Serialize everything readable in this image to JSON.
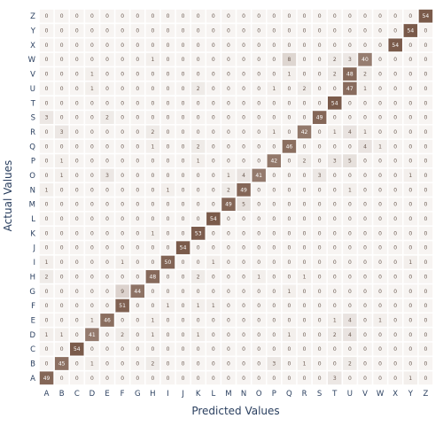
{
  "chart_data": {
    "type": "heatmap",
    "xlabel": "Predicted Values",
    "ylabel": "Actual Values",
    "x_categories": [
      "A",
      "B",
      "C",
      "D",
      "E",
      "F",
      "G",
      "H",
      "I",
      "J",
      "K",
      "L",
      "M",
      "N",
      "O",
      "P",
      "Q",
      "R",
      "S",
      "T",
      "U",
      "V",
      "W",
      "X",
      "Y",
      "Z"
    ],
    "y_categories": [
      "A",
      "B",
      "C",
      "D",
      "E",
      "F",
      "G",
      "H",
      "I",
      "J",
      "K",
      "L",
      "M",
      "N",
      "O",
      "P",
      "Q",
      "R",
      "S",
      "T",
      "U",
      "V",
      "W",
      "X",
      "Y",
      "Z"
    ],
    "value_range": [
      0,
      54
    ],
    "colorscale": [
      "#f7f4f2",
      "#7a5a4a"
    ],
    "grid": false,
    "legend": "none",
    "z": [
      [
        49,
        0,
        0,
        0,
        0,
        0,
        0,
        0,
        0,
        0,
        0,
        0,
        0,
        0,
        0,
        0,
        0,
        0,
        0,
        3,
        0,
        0,
        0,
        0,
        1,
        0
      ],
      [
        0,
        45,
        0,
        1,
        0,
        0,
        0,
        2,
        0,
        0,
        0,
        0,
        0,
        0,
        0,
        3,
        0,
        1,
        0,
        0,
        2,
        0,
        0,
        0,
        0,
        0
      ],
      [
        0,
        0,
        54,
        0,
        0,
        0,
        0,
        0,
        0,
        0,
        0,
        0,
        0,
        0,
        0,
        0,
        0,
        0,
        0,
        0,
        0,
        0,
        0,
        0,
        0,
        0
      ],
      [
        1,
        1,
        0,
        41,
        0,
        2,
        0,
        1,
        0,
        0,
        1,
        0,
        0,
        0,
        0,
        0,
        1,
        0,
        0,
        2,
        4,
        0,
        0,
        0,
        0,
        0
      ],
      [
        0,
        0,
        0,
        1,
        46,
        0,
        0,
        1,
        0,
        0,
        0,
        0,
        0,
        0,
        0,
        0,
        0,
        0,
        0,
        1,
        4,
        0,
        1,
        0,
        0,
        0
      ],
      [
        0,
        0,
        0,
        0,
        0,
        51,
        0,
        0,
        1,
        0,
        1,
        1,
        0,
        0,
        0,
        0,
        0,
        0,
        0,
        0,
        0,
        0,
        0,
        0,
        0,
        0
      ],
      [
        0,
        0,
        0,
        0,
        0,
        9,
        44,
        0,
        0,
        0,
        0,
        0,
        0,
        0,
        0,
        0,
        1,
        0,
        0,
        0,
        0,
        0,
        0,
        0,
        0,
        0
      ],
      [
        2,
        0,
        0,
        0,
        0,
        0,
        0,
        48,
        0,
        0,
        2,
        0,
        0,
        0,
        1,
        0,
        0,
        1,
        0,
        0,
        0,
        0,
        0,
        0,
        0,
        0
      ],
      [
        1,
        0,
        0,
        0,
        0,
        1,
        0,
        0,
        50,
        0,
        0,
        1,
        0,
        0,
        0,
        0,
        0,
        0,
        0,
        0,
        0,
        0,
        0,
        0,
        1,
        0
      ],
      [
        0,
        0,
        0,
        0,
        0,
        0,
        0,
        0,
        0,
        54,
        0,
        0,
        0,
        0,
        0,
        0,
        0,
        0,
        0,
        0,
        0,
        0,
        0,
        0,
        0,
        0
      ],
      [
        0,
        0,
        0,
        0,
        0,
        0,
        0,
        1,
        0,
        0,
        53,
        0,
        0,
        0,
        0,
        0,
        0,
        0,
        0,
        0,
        0,
        0,
        0,
        0,
        0,
        0
      ],
      [
        0,
        0,
        0,
        0,
        0,
        0,
        0,
        0,
        0,
        0,
        0,
        54,
        0,
        0,
        0,
        0,
        0,
        0,
        0,
        0,
        0,
        0,
        0,
        0,
        0,
        0
      ],
      [
        0,
        0,
        0,
        0,
        0,
        0,
        0,
        0,
        0,
        0,
        0,
        0,
        49,
        5,
        0,
        0,
        0,
        0,
        0,
        0,
        0,
        0,
        0,
        0,
        0,
        0
      ],
      [
        1,
        0,
        0,
        0,
        0,
        0,
        0,
        0,
        1,
        0,
        0,
        0,
        2,
        49,
        0,
        0,
        0,
        0,
        0,
        0,
        1,
        0,
        0,
        0,
        0,
        0
      ],
      [
        0,
        1,
        0,
        0,
        3,
        0,
        0,
        0,
        0,
        0,
        0,
        0,
        1,
        4,
        41,
        0,
        0,
        0,
        3,
        0,
        0,
        0,
        0,
        0,
        1,
        0
      ],
      [
        0,
        1,
        0,
        0,
        0,
        0,
        0,
        0,
        0,
        0,
        1,
        0,
        0,
        0,
        0,
        42,
        0,
        2,
        0,
        3,
        5,
        0,
        0,
        0,
        0,
        0
      ],
      [
        0,
        0,
        0,
        0,
        0,
        0,
        0,
        1,
        0,
        0,
        2,
        0,
        0,
        0,
        0,
        0,
        46,
        0,
        0,
        0,
        0,
        4,
        1,
        0,
        0,
        0
      ],
      [
        0,
        3,
        0,
        0,
        0,
        0,
        0,
        2,
        0,
        0,
        0,
        0,
        0,
        0,
        0,
        1,
        0,
        42,
        0,
        1,
        4,
        1,
        0,
        0,
        0,
        0
      ],
      [
        3,
        0,
        0,
        0,
        2,
        0,
        0,
        0,
        0,
        0,
        0,
        0,
        0,
        0,
        0,
        0,
        0,
        0,
        49,
        0,
        0,
        0,
        0,
        0,
        0,
        0
      ],
      [
        0,
        0,
        0,
        0,
        0,
        0,
        0,
        0,
        0,
        0,
        0,
        0,
        0,
        0,
        0,
        0,
        0,
        0,
        0,
        54,
        0,
        0,
        0,
        0,
        0,
        0
      ],
      [
        0,
        0,
        0,
        1,
        0,
        0,
        0,
        0,
        0,
        0,
        2,
        0,
        0,
        0,
        0,
        1,
        0,
        2,
        0,
        0,
        47,
        1,
        0,
        0,
        0,
        0
      ],
      [
        0,
        0,
        0,
        1,
        0,
        0,
        0,
        0,
        0,
        0,
        0,
        0,
        0,
        0,
        0,
        0,
        1,
        0,
        0,
        2,
        48,
        2,
        0,
        0,
        0,
        0
      ],
      [
        0,
        0,
        0,
        0,
        0,
        0,
        0,
        1,
        0,
        0,
        0,
        0,
        0,
        0,
        0,
        0,
        8,
        0,
        0,
        2,
        3,
        40,
        0,
        0,
        0,
        0
      ],
      [
        0,
        0,
        0,
        0,
        0,
        0,
        0,
        0,
        0,
        0,
        0,
        0,
        0,
        0,
        0,
        0,
        0,
        0,
        0,
        0,
        0,
        0,
        0,
        54,
        0,
        0
      ],
      [
        0,
        0,
        0,
        0,
        0,
        0,
        0,
        0,
        0,
        0,
        0,
        0,
        0,
        0,
        0,
        0,
        0,
        0,
        0,
        0,
        0,
        0,
        0,
        0,
        54,
        0
      ],
      [
        0,
        0,
        0,
        0,
        0,
        0,
        0,
        0,
        0,
        0,
        0,
        0,
        0,
        0,
        0,
        0,
        0,
        0,
        0,
        0,
        0,
        0,
        0,
        0,
        0,
        54
      ]
    ]
  }
}
